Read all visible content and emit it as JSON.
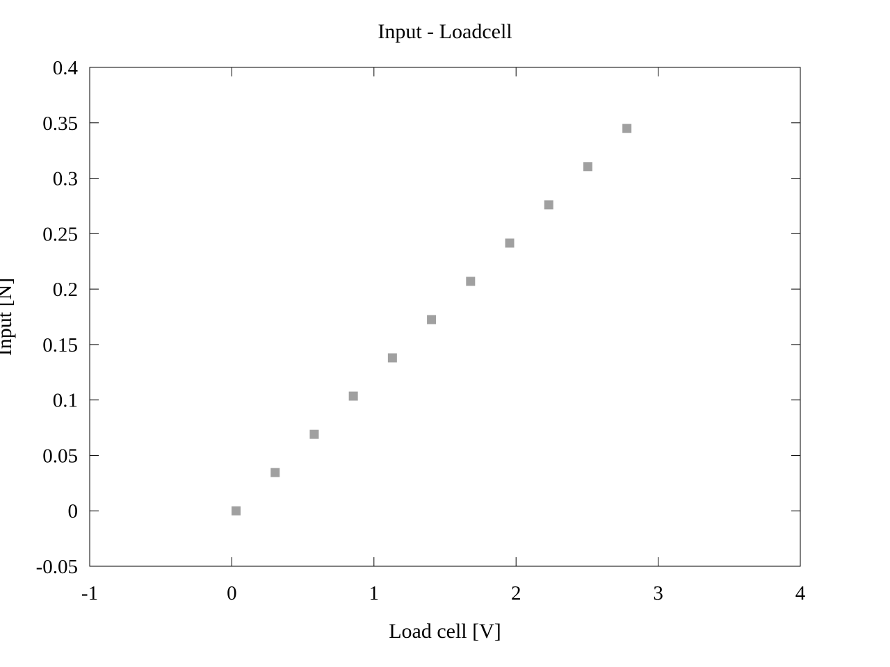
{
  "chart_data": {
    "type": "scatter",
    "title": "Input - Loadcell",
    "xlabel": "Load cell [V]",
    "ylabel": "Input [N]",
    "xlim": [
      -1,
      4
    ],
    "ylim": [
      -0.05,
      0.4
    ],
    "xticks": [
      -1,
      0,
      1,
      2,
      3,
      4
    ],
    "yticks": [
      -0.05,
      0,
      0.05,
      0.1,
      0.15,
      0.2,
      0.25,
      0.3,
      0.35,
      0.4
    ],
    "xtick_labels": [
      "-1",
      "0",
      "1",
      "2",
      "3",
      "4"
    ],
    "ytick_labels": [
      "-0.05",
      "0",
      "0.05",
      "0.1",
      "0.15",
      "0.2",
      "0.25",
      "0.3",
      "0.35",
      "0.4"
    ],
    "grid": false,
    "series": [
      {
        "color": "#a0a0a0",
        "marker": "square",
        "points": [
          {
            "x": 0.03,
            "y": 0.0
          },
          {
            "x": 0.305,
            "y": 0.0345
          },
          {
            "x": 0.58,
            "y": 0.069
          },
          {
            "x": 0.855,
            "y": 0.1035
          },
          {
            "x": 1.13,
            "y": 0.138
          },
          {
            "x": 1.405,
            "y": 0.1725
          },
          {
            "x": 1.68,
            "y": 0.207
          },
          {
            "x": 1.955,
            "y": 0.2415
          },
          {
            "x": 2.23,
            "y": 0.276
          },
          {
            "x": 2.505,
            "y": 0.3105
          },
          {
            "x": 2.78,
            "y": 0.345
          }
        ]
      }
    ]
  }
}
